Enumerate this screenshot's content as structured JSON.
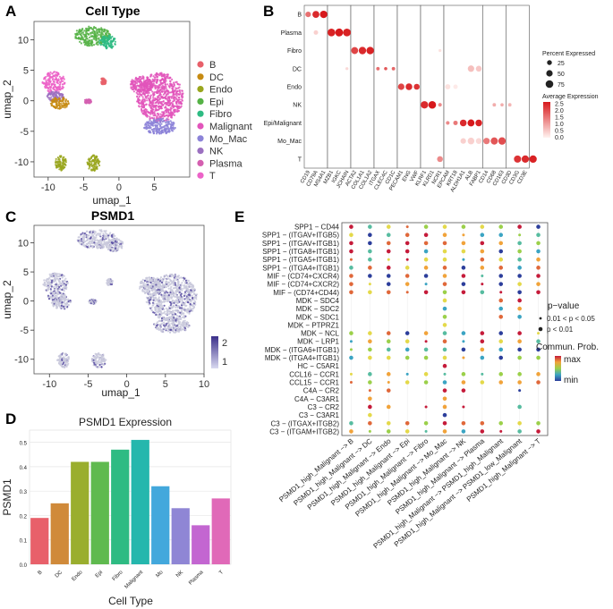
{
  "panel_labels": [
    "A",
    "B",
    "C",
    "D",
    "E"
  ],
  "chart_data": [
    {
      "panel": "A",
      "type": "scatter",
      "title": "Cell Type",
      "xlabel": "umap_1",
      "ylabel": "umap_2",
      "xticks": [
        -10,
        -5,
        0,
        5
      ],
      "yticks": [
        -10,
        -5,
        0,
        5,
        10
      ],
      "xlim": [
        -12,
        10
      ],
      "ylim": [
        -12.5,
        13
      ],
      "legend": [
        "B",
        "DC",
        "Endo",
        "Epi",
        "Fibro",
        "Malignant",
        "Mo_Mac",
        "NK",
        "Plasma",
        "T"
      ],
      "colors": [
        "#e8606a",
        "#c78b12",
        "#99a61d",
        "#55b245",
        "#2ebb83",
        "#e255bb",
        "#8c83d8",
        "#9b70c0",
        "#d45fb0",
        "#ec63c8"
      ],
      "clusters": [
        {
          "type": "Malignant",
          "cx": 5.8,
          "cy": 0.6,
          "rx": 3.3,
          "ry": 4.0
        },
        {
          "type": "Malignant",
          "cx": 3.2,
          "cy": 2.6,
          "rx": 1.6,
          "ry": 1.5
        },
        {
          "type": "Mo_Mac",
          "cx": 5.8,
          "cy": -4.2,
          "rx": 2.3,
          "ry": 1.3
        },
        {
          "type": "Epi",
          "cx": -3.8,
          "cy": 10.6,
          "rx": 2.6,
          "ry": 1.6
        },
        {
          "type": "Fibro",
          "cx": -1.6,
          "cy": 9.6,
          "rx": 1.2,
          "ry": 1.1
        },
        {
          "type": "T",
          "cx": -9.2,
          "cy": 3.0,
          "rx": 1.6,
          "ry": 1.8
        },
        {
          "type": "NK",
          "cx": -9.0,
          "cy": 0.7,
          "rx": 1.2,
          "ry": 0.8
        },
        {
          "type": "DC",
          "cx": -8.4,
          "cy": -0.4,
          "rx": 1.3,
          "ry": 1.0
        },
        {
          "type": "Endo",
          "cx": -3.6,
          "cy": -10.2,
          "rx": 0.9,
          "ry": 1.3
        },
        {
          "type": "Endo",
          "cx": -8.2,
          "cy": -10.2,
          "rx": 0.8,
          "ry": 1.3
        },
        {
          "type": "B",
          "cx": -2.2,
          "cy": 3.2,
          "rx": 0.4,
          "ry": 0.6
        },
        {
          "type": "Plasma",
          "cx": -4.4,
          "cy": -0.1,
          "rx": 0.5,
          "ry": 0.4
        }
      ]
    },
    {
      "panel": "B",
      "type": "dot",
      "rows": [
        "B",
        "Plasma",
        "Fibro",
        "DC",
        "Endo",
        "NK",
        "Epi/Malignant",
        "Mo_Mac",
        "T"
      ],
      "groups": [
        {
          "name": "B",
          "genes": [
            "CD19",
            "CD79A",
            "MS4A1"
          ]
        },
        {
          "name": "Plasma",
          "genes": [
            "MZB1",
            "IGKC",
            "JCHAIN"
          ]
        },
        {
          "name": "Fibro",
          "genes": [
            "ACTA2",
            "COL1A1",
            "COL1A2"
          ]
        },
        {
          "name": "DC",
          "genes": [
            "ITGAX",
            "CLEC4C",
            "CD1C"
          ]
        },
        {
          "name": "Endo",
          "genes": [
            "PECAM1",
            "ENG",
            "VWF"
          ]
        },
        {
          "name": "NK",
          "genes": [
            "KLRF1",
            "KLRD1",
            "NCR1"
          ]
        },
        {
          "name": "Epi",
          "genes": [
            "EPCAM",
            "KRT18",
            "ALDH1A1",
            "ALB",
            "FABP1"
          ]
        },
        {
          "name": "Mo_Mac",
          "genes": [
            "CD14",
            "CD68",
            "CD163"
          ]
        },
        {
          "name": "T",
          "genes": [
            "CD3D",
            "CD3G",
            "CD3E"
          ]
        }
      ],
      "dots": [
        {
          "row": 0,
          "col": 0,
          "pct": 35,
          "expr": 1.5
        },
        {
          "row": 0,
          "col": 1,
          "pct": 60,
          "expr": 2.3
        },
        {
          "row": 0,
          "col": 2,
          "pct": 70,
          "expr": 2.5
        },
        {
          "row": 1,
          "col": 1,
          "pct": 20,
          "expr": 0.4
        },
        {
          "row": 1,
          "col": 3,
          "pct": 75,
          "expr": 2.4
        },
        {
          "row": 1,
          "col": 4,
          "pct": 80,
          "expr": 2.6
        },
        {
          "row": 1,
          "col": 5,
          "pct": 78,
          "expr": 2.4
        },
        {
          "row": 2,
          "col": 6,
          "pct": 60,
          "expr": 2.0
        },
        {
          "row": 2,
          "col": 7,
          "pct": 70,
          "expr": 2.3
        },
        {
          "row": 2,
          "col": 8,
          "pct": 72,
          "expr": 2.4
        },
        {
          "row": 3,
          "col": 9,
          "pct": 10,
          "expr": 1.5
        },
        {
          "row": 3,
          "col": 10,
          "pct": 8,
          "expr": 1.8
        },
        {
          "row": 3,
          "col": 11,
          "pct": 10,
          "expr": 1.6
        },
        {
          "row": 3,
          "col": 21,
          "pct": 50,
          "expr": 0.6
        },
        {
          "row": 3,
          "col": 22,
          "pct": 40,
          "expr": 0.5
        },
        {
          "row": 4,
          "col": 12,
          "pct": 50,
          "expr": 2.0
        },
        {
          "row": 4,
          "col": 13,
          "pct": 55,
          "expr": 2.3
        },
        {
          "row": 4,
          "col": 14,
          "pct": 40,
          "expr": 2.2
        },
        {
          "row": 4,
          "col": 18,
          "pct": 30,
          "expr": 0.2
        },
        {
          "row": 4,
          "col": 19,
          "pct": 20,
          "expr": 0.1
        },
        {
          "row": 5,
          "col": 15,
          "pct": 70,
          "expr": 2.3
        },
        {
          "row": 5,
          "col": 16,
          "pct": 75,
          "expr": 2.5
        },
        {
          "row": 5,
          "col": 17,
          "pct": 12,
          "expr": 1.2
        },
        {
          "row": 5,
          "col": 24,
          "pct": 10,
          "expr": 0.8
        },
        {
          "row": 5,
          "col": 25,
          "pct": 8,
          "expr": 0.8
        },
        {
          "row": 5,
          "col": 26,
          "pct": 10,
          "expr": 0.7
        },
        {
          "row": 6,
          "col": 18,
          "pct": 12,
          "expr": 1.2
        },
        {
          "row": 6,
          "col": 19,
          "pct": 20,
          "expr": 1.4
        },
        {
          "row": 6,
          "col": 20,
          "pct": 55,
          "expr": 2.3
        },
        {
          "row": 6,
          "col": 21,
          "pct": 60,
          "expr": 2.5
        },
        {
          "row": 6,
          "col": 22,
          "pct": 55,
          "expr": 2.4
        },
        {
          "row": 7,
          "col": 20,
          "pct": 35,
          "expr": 0.4
        },
        {
          "row": 7,
          "col": 21,
          "pct": 55,
          "expr": 0.4
        },
        {
          "row": 7,
          "col": 22,
          "pct": 40,
          "expr": 0.3
        },
        {
          "row": 7,
          "col": 23,
          "pct": 50,
          "expr": 1.4
        },
        {
          "row": 7,
          "col": 24,
          "pct": 65,
          "expr": 1.8
        },
        {
          "row": 7,
          "col": 25,
          "pct": 70,
          "expr": 1.9
        },
        {
          "row": 8,
          "col": 17,
          "pct": 40,
          "expr": 1.2
        },
        {
          "row": 8,
          "col": 27,
          "pct": 65,
          "expr": 2.2
        },
        {
          "row": 8,
          "col": 28,
          "pct": 68,
          "expr": 2.3
        },
        {
          "row": 8,
          "col": 29,
          "pct": 70,
          "expr": 2.4
        },
        {
          "row": 3,
          "col": 5,
          "pct": 6,
          "expr": 0.3
        },
        {
          "row": 2,
          "col": 17,
          "pct": 6,
          "expr": 0.2
        }
      ],
      "legend_size_title": "Percent Expressed",
      "legend_sizes": [
        "25",
        "50",
        "75"
      ],
      "legend_color_title": "Average Expression",
      "legend_color_ticks": [
        "2.5",
        "2.0",
        "1.5",
        "1.0",
        "0.5",
        "0.0"
      ]
    },
    {
      "panel": "C",
      "type": "scatter",
      "title": "PSMD1",
      "xlabel": "umap_1",
      "ylabel": "umap_2",
      "xticks": [
        -10,
        -5,
        0,
        5,
        10
      ],
      "yticks": [
        -10,
        -5,
        0,
        5,
        10
      ],
      "xlim": [
        -12,
        10
      ],
      "ylim": [
        -12.5,
        13
      ],
      "color_ticks": [
        "2",
        "1"
      ]
    },
    {
      "panel": "D",
      "type": "bar",
      "title": "PSMD1 Expression",
      "categories": [
        "B",
        "DC",
        "Endo",
        "Epi",
        "Fibro",
        "Malignant",
        "Mo",
        "NK",
        "Plasma",
        "T"
      ],
      "values": [
        0.19,
        0.25,
        0.42,
        0.42,
        0.47,
        0.51,
        0.32,
        0.23,
        0.16,
        0.27
      ],
      "colors": [
        "#e8606a",
        "#d08a3a",
        "#9aae2e",
        "#5fba4f",
        "#2ebb83",
        "#25b7ad",
        "#43a8dc",
        "#8f86d5",
        "#c366d1",
        "#e069b8"
      ],
      "xlabel": "Cell Type",
      "ylabel": "PSMD1",
      "ylim": [
        0,
        0.55
      ],
      "yticks": [
        "0.0",
        "0.1",
        "0.2",
        "0.3",
        "0.4",
        "0.5"
      ]
    },
    {
      "panel": "E",
      "type": "dot",
      "rows": [
        "SPP1 − CD44",
        "SPP1 − (ITGAV+ITGB5)",
        "SPP1 − (ITGAV+ITGB1)",
        "SPP1 − (ITGA8+ITGB1)",
        "SPP1 − (ITGA5+ITGB1)",
        "SPP1 − (ITGA4+ITGB1)",
        "MIF − (CD74+CXCR4)",
        "MIF − (CD74+CXCR2)",
        "MIF − (CD74+CD44)",
        "MDK − SDC4",
        "MDK − SDC2",
        "MDK − SDC1",
        "MDK − PTPRZ1",
        "MDK − NCL",
        "MDK − LRP1",
        "MDK − (ITGA6+ITGB1)",
        "MDK − (ITGA4+ITGB1)",
        "HC − C5AR1",
        "CCL16 − CCR1",
        "CCL15 − CCR1",
        "C4A − CR2",
        "C4A − C3AR1",
        "C3 − CR2",
        "C3 − C3AR1",
        "C3 − (ITGAX+ITGB2)",
        "C3 − (ITGAM+ITGB2)"
      ],
      "cols": [
        "PSMD1_high_Malignant −> B",
        "PSMD1_high_Malignant −> DC",
        "PSMD1_high_Malignant −> Endo",
        "PSMD1_high_Malignant −> Epi",
        "PSMD1_high_Malignant −> Fibro",
        "PSMD1_high_Malignant −> Mo_Mac",
        "PSMD1_high_Malignant −> NK",
        "PSMD1_high_Malignant −> Plasma",
        "PSMD1_high_Malignant −> PSMD1_high_Malignant",
        "PSMD1_high_Malignant −> PSMD1_low_Malignant",
        "PSMD1_high_Malignant −> T"
      ],
      "legend_p_title": "p−value",
      "legend_p": [
        "0.01 < p < 0.05",
        "p < 0.01"
      ],
      "legend_c_title": "Commun. Prob.",
      "legend_c_max": "max",
      "legend_c_min": "min"
    }
  ]
}
